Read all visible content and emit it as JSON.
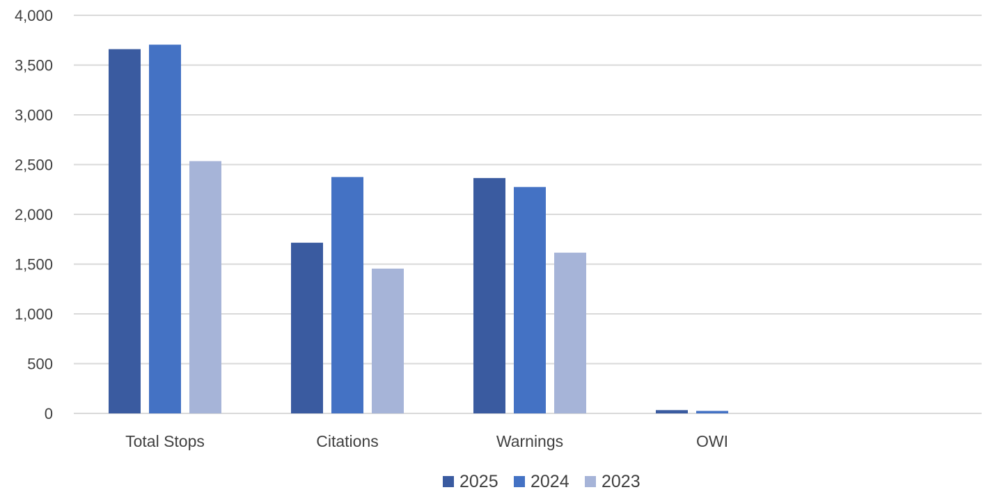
{
  "chart_data": {
    "type": "bar",
    "title": "",
    "xlabel": "",
    "ylabel": "",
    "categories": [
      "Total Stops",
      "Citations",
      "Warnings",
      "OWI"
    ],
    "series": [
      {
        "name": "2025",
        "color": "#3a5ba0",
        "values": [
          3660,
          1715,
          2365,
          33
        ]
      },
      {
        "name": "2024",
        "color": "#4472c4",
        "values": [
          3705,
          2375,
          2275,
          25
        ]
      },
      {
        "name": "2023",
        "color": "#a6b4d8",
        "values": [
          2535,
          1455,
          1615,
          0
        ]
      }
    ],
    "ylim": [
      0,
      4000
    ],
    "y_ticks": [
      0,
      500,
      1000,
      1500,
      2000,
      2500,
      3000,
      3500,
      4000
    ],
    "y_tick_labels": [
      "0",
      "500",
      "1,000",
      "1,500",
      "2,000",
      "2,500",
      "3,000",
      "3,500",
      "4,000"
    ],
    "grid": true,
    "legend_position": "bottom"
  }
}
